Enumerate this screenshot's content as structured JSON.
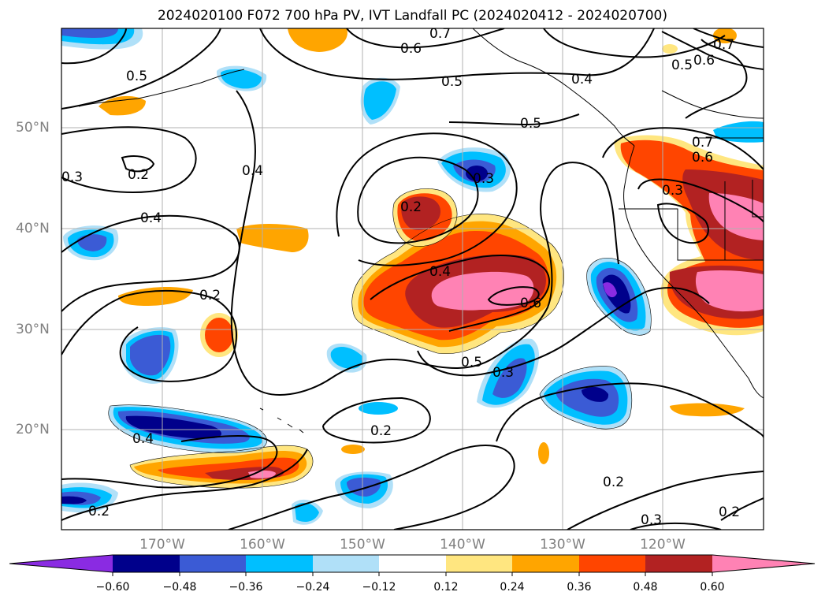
{
  "title": "2024020100 F072 700 hPa PV, IVT Landfall PC (2024020412 - 2024020700)",
  "map": {
    "lat_labels": [
      "50°N",
      "40°N",
      "30°N",
      "20°N"
    ],
    "lon_labels": [
      "170°W",
      "160°W",
      "150°W",
      "140°W",
      "130°W",
      "120°W"
    ],
    "contour_labels": [
      "0.7",
      "0.6",
      "0.5",
      "0.5",
      "0.4",
      "0.5",
      "0.7",
      "0.6",
      "0.5",
      "0.3",
      "0.2",
      "0.4",
      "0.2",
      "0.3",
      "0.4",
      "0.7",
      "0.6",
      "0.3",
      "0.4",
      "0.2",
      "0.6",
      "0.5",
      "0.3",
      "0.4",
      "0.2",
      "0.2",
      "0.2",
      "0.3",
      "0.2"
    ]
  },
  "colorbar": {
    "labels": [
      "−0.60",
      "−0.48",
      "−0.36",
      "−0.24",
      "−0.12",
      "0.12",
      "0.24",
      "0.36",
      "0.48",
      "0.60"
    ],
    "colors": [
      "#8a2be2",
      "#00008b",
      "#3b5bd5",
      "#00bfff",
      "#b0e0f8",
      "#ffffff",
      "#ffe680",
      "#ffa500",
      "#ff4500",
      "#b22222",
      "#ff82b4",
      "#ff82b4"
    ]
  }
}
